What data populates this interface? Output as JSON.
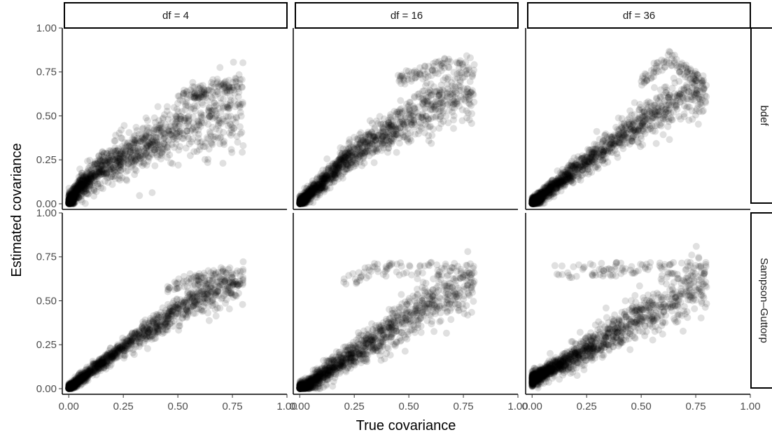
{
  "chart_data": {
    "type": "scatter",
    "title": "",
    "xlabel": "True covariance",
    "ylabel": "Estimated covariance",
    "xlim": [
      -0.02,
      1.0
    ],
    "ylim": [
      -0.02,
      1.0
    ],
    "x_ticks": [
      "0.00",
      "0.25",
      "0.50",
      "0.75",
      "1.00"
    ],
    "y_ticks": [
      "0.00",
      "0.25",
      "0.50",
      "0.75",
      "1.00"
    ],
    "grid": false,
    "point_color": "#000000",
    "point_opacity": 0.12,
    "facet_columns": [
      "df = 4",
      "df = 16",
      "df = 36"
    ],
    "facet_rows": [
      "bdef",
      "Sampson–Guttorp"
    ],
    "panels": [
      {
        "column": "df = 4",
        "row": "bdef",
        "trend": [
          [
            0.0,
            0.0
          ],
          [
            0.05,
            0.1
          ],
          [
            0.15,
            0.2
          ],
          [
            0.3,
            0.3
          ],
          [
            0.5,
            0.42
          ],
          [
            0.65,
            0.5
          ],
          [
            0.8,
            0.55
          ]
        ],
        "spread": 0.1,
        "outline": [
          [
            0.5,
            0.63
          ],
          [
            0.65,
            0.7
          ],
          [
            0.8,
            0.72
          ]
        ]
      },
      {
        "column": "df = 16",
        "row": "bdef",
        "trend": [
          [
            0.0,
            0.0
          ],
          [
            0.1,
            0.12
          ],
          [
            0.2,
            0.24
          ],
          [
            0.35,
            0.37
          ],
          [
            0.5,
            0.48
          ],
          [
            0.65,
            0.6
          ],
          [
            0.8,
            0.62
          ]
        ],
        "spread": 0.07,
        "outline": [
          [
            0.45,
            0.75
          ],
          [
            0.6,
            0.8
          ],
          [
            0.67,
            0.83
          ],
          [
            0.8,
            0.8
          ]
        ]
      },
      {
        "column": "df = 36",
        "row": "bdef",
        "trend": [
          [
            0.0,
            0.0
          ],
          [
            0.1,
            0.1
          ],
          [
            0.25,
            0.24
          ],
          [
            0.4,
            0.37
          ],
          [
            0.55,
            0.5
          ],
          [
            0.7,
            0.6
          ],
          [
            0.8,
            0.65
          ]
        ],
        "spread": 0.06,
        "outline": [
          [
            0.5,
            0.75
          ],
          [
            0.63,
            0.87
          ],
          [
            0.8,
            0.7
          ]
        ]
      },
      {
        "column": "df = 4",
        "row": "Sampson–Guttorp",
        "trend": [
          [
            0.0,
            0.0
          ],
          [
            0.1,
            0.1
          ],
          [
            0.25,
            0.24
          ],
          [
            0.4,
            0.36
          ],
          [
            0.55,
            0.48
          ],
          [
            0.7,
            0.57
          ],
          [
            0.8,
            0.6
          ]
        ],
        "spread": 0.045,
        "outline": [
          [
            0.45,
            0.6
          ],
          [
            0.55,
            0.66
          ],
          [
            0.7,
            0.68
          ],
          [
            0.8,
            0.66
          ]
        ]
      },
      {
        "column": "df = 16",
        "row": "Sampson–Guttorp",
        "trend": [
          [
            0.02,
            0.0
          ],
          [
            0.1,
            0.08
          ],
          [
            0.25,
            0.2
          ],
          [
            0.4,
            0.32
          ],
          [
            0.55,
            0.45
          ],
          [
            0.7,
            0.55
          ],
          [
            0.8,
            0.6
          ]
        ],
        "spread": 0.07,
        "outline": [
          [
            0.2,
            0.65
          ],
          [
            0.35,
            0.72
          ],
          [
            0.6,
            0.72
          ],
          [
            0.8,
            0.7
          ]
        ]
      },
      {
        "column": "df = 36",
        "row": "Sampson–Guttorp",
        "trend": [
          [
            0.0,
            0.05
          ],
          [
            0.1,
            0.12
          ],
          [
            0.25,
            0.22
          ],
          [
            0.4,
            0.33
          ],
          [
            0.55,
            0.44
          ],
          [
            0.7,
            0.55
          ],
          [
            0.8,
            0.62
          ]
        ],
        "spread": 0.07,
        "outline": [
          [
            0.1,
            0.7
          ],
          [
            0.3,
            0.72
          ],
          [
            0.6,
            0.72
          ],
          [
            0.8,
            0.72
          ]
        ]
      }
    ]
  }
}
